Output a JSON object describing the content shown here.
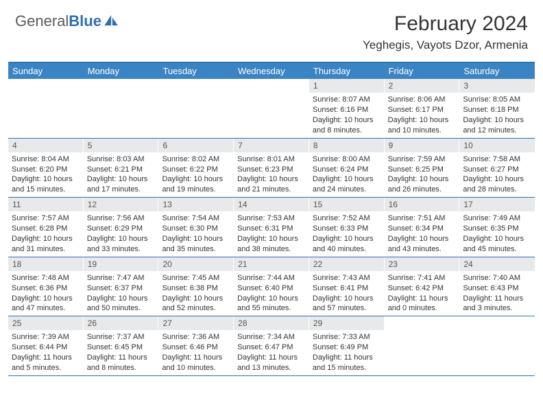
{
  "brand": {
    "part1": "General",
    "part2": "Blue"
  },
  "title": "February 2024",
  "location": "Yeghegis, Vayots Dzor, Armenia",
  "colors": {
    "header_bar": "#3b84c4",
    "accent_line": "#2f6fb0",
    "day_num_bg": "#e8e9ea",
    "text": "#333333"
  },
  "day_headers": [
    "Sunday",
    "Monday",
    "Tuesday",
    "Wednesday",
    "Thursday",
    "Friday",
    "Saturday"
  ],
  "weeks": [
    [
      {
        "n": "",
        "sr": "",
        "ss": "",
        "dl": ""
      },
      {
        "n": "",
        "sr": "",
        "ss": "",
        "dl": ""
      },
      {
        "n": "",
        "sr": "",
        "ss": "",
        "dl": ""
      },
      {
        "n": "",
        "sr": "",
        "ss": "",
        "dl": ""
      },
      {
        "n": "1",
        "sr": "Sunrise: 8:07 AM",
        "ss": "Sunset: 6:16 PM",
        "dl": "Daylight: 10 hours and 8 minutes."
      },
      {
        "n": "2",
        "sr": "Sunrise: 8:06 AM",
        "ss": "Sunset: 6:17 PM",
        "dl": "Daylight: 10 hours and 10 minutes."
      },
      {
        "n": "3",
        "sr": "Sunrise: 8:05 AM",
        "ss": "Sunset: 6:18 PM",
        "dl": "Daylight: 10 hours and 12 minutes."
      }
    ],
    [
      {
        "n": "4",
        "sr": "Sunrise: 8:04 AM",
        "ss": "Sunset: 6:20 PM",
        "dl": "Daylight: 10 hours and 15 minutes."
      },
      {
        "n": "5",
        "sr": "Sunrise: 8:03 AM",
        "ss": "Sunset: 6:21 PM",
        "dl": "Daylight: 10 hours and 17 minutes."
      },
      {
        "n": "6",
        "sr": "Sunrise: 8:02 AM",
        "ss": "Sunset: 6:22 PM",
        "dl": "Daylight: 10 hours and 19 minutes."
      },
      {
        "n": "7",
        "sr": "Sunrise: 8:01 AM",
        "ss": "Sunset: 6:23 PM",
        "dl": "Daylight: 10 hours and 21 minutes."
      },
      {
        "n": "8",
        "sr": "Sunrise: 8:00 AM",
        "ss": "Sunset: 6:24 PM",
        "dl": "Daylight: 10 hours and 24 minutes."
      },
      {
        "n": "9",
        "sr": "Sunrise: 7:59 AM",
        "ss": "Sunset: 6:25 PM",
        "dl": "Daylight: 10 hours and 26 minutes."
      },
      {
        "n": "10",
        "sr": "Sunrise: 7:58 AM",
        "ss": "Sunset: 6:27 PM",
        "dl": "Daylight: 10 hours and 28 minutes."
      }
    ],
    [
      {
        "n": "11",
        "sr": "Sunrise: 7:57 AM",
        "ss": "Sunset: 6:28 PM",
        "dl": "Daylight: 10 hours and 31 minutes."
      },
      {
        "n": "12",
        "sr": "Sunrise: 7:56 AM",
        "ss": "Sunset: 6:29 PM",
        "dl": "Daylight: 10 hours and 33 minutes."
      },
      {
        "n": "13",
        "sr": "Sunrise: 7:54 AM",
        "ss": "Sunset: 6:30 PM",
        "dl": "Daylight: 10 hours and 35 minutes."
      },
      {
        "n": "14",
        "sr": "Sunrise: 7:53 AM",
        "ss": "Sunset: 6:31 PM",
        "dl": "Daylight: 10 hours and 38 minutes."
      },
      {
        "n": "15",
        "sr": "Sunrise: 7:52 AM",
        "ss": "Sunset: 6:33 PM",
        "dl": "Daylight: 10 hours and 40 minutes."
      },
      {
        "n": "16",
        "sr": "Sunrise: 7:51 AM",
        "ss": "Sunset: 6:34 PM",
        "dl": "Daylight: 10 hours and 43 minutes."
      },
      {
        "n": "17",
        "sr": "Sunrise: 7:49 AM",
        "ss": "Sunset: 6:35 PM",
        "dl": "Daylight: 10 hours and 45 minutes."
      }
    ],
    [
      {
        "n": "18",
        "sr": "Sunrise: 7:48 AM",
        "ss": "Sunset: 6:36 PM",
        "dl": "Daylight: 10 hours and 47 minutes."
      },
      {
        "n": "19",
        "sr": "Sunrise: 7:47 AM",
        "ss": "Sunset: 6:37 PM",
        "dl": "Daylight: 10 hours and 50 minutes."
      },
      {
        "n": "20",
        "sr": "Sunrise: 7:45 AM",
        "ss": "Sunset: 6:38 PM",
        "dl": "Daylight: 10 hours and 52 minutes."
      },
      {
        "n": "21",
        "sr": "Sunrise: 7:44 AM",
        "ss": "Sunset: 6:40 PM",
        "dl": "Daylight: 10 hours and 55 minutes."
      },
      {
        "n": "22",
        "sr": "Sunrise: 7:43 AM",
        "ss": "Sunset: 6:41 PM",
        "dl": "Daylight: 10 hours and 57 minutes."
      },
      {
        "n": "23",
        "sr": "Sunrise: 7:41 AM",
        "ss": "Sunset: 6:42 PM",
        "dl": "Daylight: 11 hours and 0 minutes."
      },
      {
        "n": "24",
        "sr": "Sunrise: 7:40 AM",
        "ss": "Sunset: 6:43 PM",
        "dl": "Daylight: 11 hours and 3 minutes."
      }
    ],
    [
      {
        "n": "25",
        "sr": "Sunrise: 7:39 AM",
        "ss": "Sunset: 6:44 PM",
        "dl": "Daylight: 11 hours and 5 minutes."
      },
      {
        "n": "26",
        "sr": "Sunrise: 7:37 AM",
        "ss": "Sunset: 6:45 PM",
        "dl": "Daylight: 11 hours and 8 minutes."
      },
      {
        "n": "27",
        "sr": "Sunrise: 7:36 AM",
        "ss": "Sunset: 6:46 PM",
        "dl": "Daylight: 11 hours and 10 minutes."
      },
      {
        "n": "28",
        "sr": "Sunrise: 7:34 AM",
        "ss": "Sunset: 6:47 PM",
        "dl": "Daylight: 11 hours and 13 minutes."
      },
      {
        "n": "29",
        "sr": "Sunrise: 7:33 AM",
        "ss": "Sunset: 6:49 PM",
        "dl": "Daylight: 11 hours and 15 minutes."
      },
      {
        "n": "",
        "sr": "",
        "ss": "",
        "dl": ""
      },
      {
        "n": "",
        "sr": "",
        "ss": "",
        "dl": ""
      }
    ]
  ]
}
